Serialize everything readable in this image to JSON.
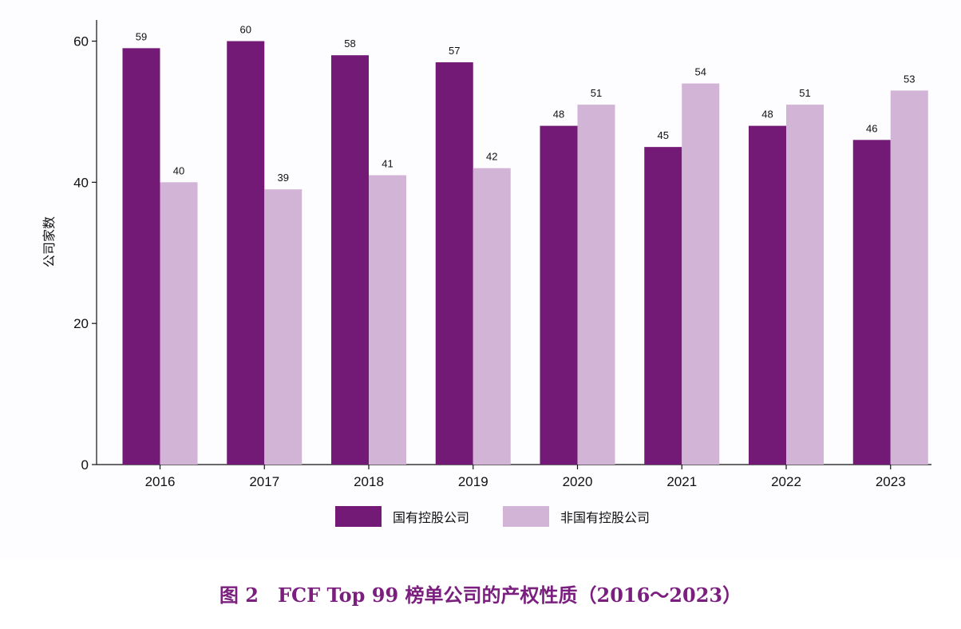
{
  "chart_data": {
    "type": "bar",
    "categories": [
      "2016",
      "2017",
      "2018",
      "2019",
      "2020",
      "2021",
      "2022",
      "2023"
    ],
    "series": [
      {
        "name": "国有控股公司",
        "values": [
          59,
          60,
          58,
          57,
          48,
          45,
          48,
          46
        ],
        "color": "#731a76"
      },
      {
        "name": "非国有控股公司",
        "values": [
          40,
          39,
          41,
          42,
          51,
          54,
          51,
          53
        ],
        "color": "#d2b4d6"
      }
    ],
    "ylabel": "公司家数",
    "xlabel": "",
    "ylim": [
      0,
      63
    ],
    "yticks": [
      0,
      20,
      40,
      60
    ],
    "grid": false,
    "legend": "bottom-center",
    "data_labels": true
  },
  "caption": "图 2　FCF Top 99 榜单公司的产权性质（2016～2023）"
}
